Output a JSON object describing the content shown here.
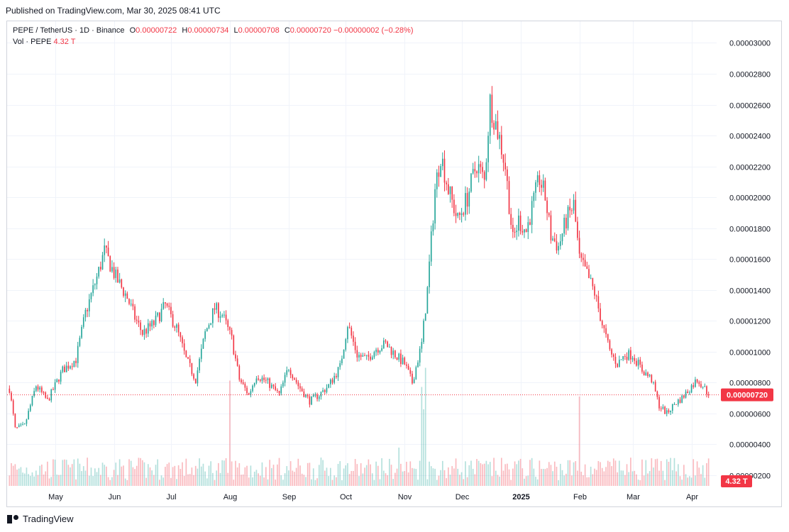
{
  "header": {
    "published": "Published on TradingView.com, Mar 30, 2025 08:41 UTC"
  },
  "legend": {
    "symbol": "PEPE / TetherUS · 1D · Binance",
    "o_label": "O",
    "o_value": "0.00000722",
    "h_label": "H",
    "h_value": "0.00000734",
    "l_label": "L",
    "l_value": "0.00000708",
    "c_label": "C",
    "c_value": "0.00000720",
    "change": "−0.00000002 (−0.28%)",
    "vol_label": "Vol · PEPE",
    "vol_value": "4.32 T"
  },
  "footer": {
    "brand": "TradingView"
  },
  "colors": {
    "up": "#26a69a",
    "down": "#f23645",
    "grid": "#f0f3fa",
    "text": "#131722"
  },
  "chart_data": {
    "type": "candlestick",
    "y_axis_labels": [
      "0.00003000",
      "0.00002800",
      "0.00002600",
      "0.00002400",
      "0.00002200",
      "0.00002000",
      "0.00001800",
      "0.00001600",
      "0.00001400",
      "0.00001200",
      "0.00001000",
      "0.00000800",
      "0.00000600",
      "0.00000400",
      "0.00000200"
    ],
    "y_ticks": [
      3e-05,
      2.8e-05,
      2.6e-05,
      2.4e-05,
      2.2e-05,
      2e-05,
      1.8e-05,
      1.6e-05,
      1.4e-05,
      1.2e-05,
      1e-05,
      8e-06,
      6e-06,
      4e-06,
      2e-06
    ],
    "ylim": [
      1.3e-06,
      3.14e-05
    ],
    "x_axis_labels": [
      "May",
      "Jun",
      "Jul",
      "Aug",
      "Sep",
      "Oct",
      "Nov",
      "Dec",
      "2025",
      "Feb",
      "Mar",
      "Apr"
    ],
    "x_label_day_index": [
      24,
      55,
      85,
      116,
      147,
      177,
      208,
      238,
      269,
      300,
      328,
      359
    ],
    "total_days": 369,
    "last_price": 7.2e-06,
    "last_price_label": "0.00000720",
    "last_volume_label": "4.32 T",
    "price_path": [
      [
        0,
        7.6e-06
      ],
      [
        3,
        5e-06
      ],
      [
        8,
        5.2e-06
      ],
      [
        14,
        7.8e-06
      ],
      [
        20,
        6.8e-06
      ],
      [
        28,
        8.8e-06
      ],
      [
        35,
        9.5e-06
      ],
      [
        40,
        1.25e-05
      ],
      [
        46,
        1.48e-05
      ],
      [
        50,
        1.65e-05
      ],
      [
        56,
        1.48e-05
      ],
      [
        62,
        1.35e-05
      ],
      [
        66,
        1.22e-05
      ],
      [
        70,
        1.12e-05
      ],
      [
        76,
        1.18e-05
      ],
      [
        82,
        1.3e-05
      ],
      [
        88,
        1.15e-05
      ],
      [
        93,
        9.5e-06
      ],
      [
        98,
        8.2e-06
      ],
      [
        103,
        1.12e-05
      ],
      [
        108,
        1.28e-05
      ],
      [
        112,
        1.24e-05
      ],
      [
        117,
        1.08e-05
      ],
      [
        121,
        8.2e-06
      ],
      [
        126,
        7.2e-06
      ],
      [
        130,
        8.5e-06
      ],
      [
        136,
        8e-06
      ],
      [
        142,
        7.2e-06
      ],
      [
        147,
        9e-06
      ],
      [
        152,
        7.8e-06
      ],
      [
        158,
        6.8e-06
      ],
      [
        163,
        7.2e-06
      ],
      [
        168,
        7.8e-06
      ],
      [
        174,
        9e-06
      ],
      [
        178,
        1.18e-05
      ],
      [
        183,
        9.8e-06
      ],
      [
        188,
        9.5e-06
      ],
      [
        193,
        1.02e-05
      ],
      [
        198,
        1.05e-05
      ],
      [
        203,
        9.8e-06
      ],
      [
        208,
        9.2e-06
      ],
      [
        212,
        8e-06
      ],
      [
        217,
        1.05e-05
      ],
      [
        220,
        1.4e-05
      ],
      [
        224,
        2.05e-05
      ],
      [
        227,
        2.28e-05
      ],
      [
        231,
        2.05e-05
      ],
      [
        236,
        1.85e-05
      ],
      [
        241,
        2e-05
      ],
      [
        246,
        2.22e-05
      ],
      [
        250,
        2.1e-05
      ],
      [
        253,
        2.62e-05
      ],
      [
        258,
        2.38e-05
      ],
      [
        261,
        2.2e-05
      ],
      [
        265,
        1.72e-05
      ],
      [
        268,
        1.85e-05
      ],
      [
        272,
        1.78e-05
      ],
      [
        276,
        1.98e-05
      ],
      [
        279,
        2.12e-05
      ],
      [
        282,
        2e-05
      ],
      [
        285,
        1.75e-05
      ],
      [
        289,
        1.68e-05
      ],
      [
        293,
        1.85e-05
      ],
      [
        297,
        1.95e-05
      ],
      [
        300,
        1.6e-05
      ],
      [
        304,
        1.5e-05
      ],
      [
        308,
        1.38e-05
      ],
      [
        312,
        1.18e-05
      ],
      [
        316,
        1e-05
      ],
      [
        320,
        9.2e-06
      ],
      [
        324,
        9.8e-06
      ],
      [
        328,
        9.8e-06
      ],
      [
        333,
        8.8e-06
      ],
      [
        338,
        8.2e-06
      ],
      [
        342,
        6.5e-06
      ],
      [
        346,
        6e-06
      ],
      [
        350,
        6.6e-06
      ],
      [
        354,
        7e-06
      ],
      [
        358,
        7.6e-06
      ],
      [
        362,
        8.2e-06
      ],
      [
        365,
        7.8e-06
      ],
      [
        368,
        7.2e-06
      ]
    ],
    "volume_spikes": [
      [
        116,
        3.3
      ],
      [
        217,
        3.1
      ],
      [
        218,
        2.4
      ],
      [
        219,
        3.7
      ],
      [
        300,
        2.8
      ],
      [
        205,
        1.2
      ]
    ]
  }
}
